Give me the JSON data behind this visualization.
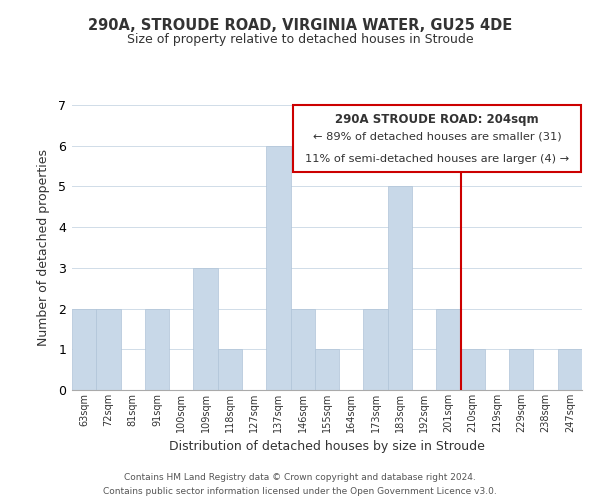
{
  "title": "290A, STROUDE ROAD, VIRGINIA WATER, GU25 4DE",
  "subtitle": "Size of property relative to detached houses in Stroude",
  "xlabel": "Distribution of detached houses by size in Stroude",
  "ylabel": "Number of detached properties",
  "categories": [
    "63sqm",
    "72sqm",
    "81sqm",
    "91sqm",
    "100sqm",
    "109sqm",
    "118sqm",
    "127sqm",
    "137sqm",
    "146sqm",
    "155sqm",
    "164sqm",
    "173sqm",
    "183sqm",
    "192sqm",
    "201sqm",
    "210sqm",
    "219sqm",
    "229sqm",
    "238sqm",
    "247sqm"
  ],
  "values": [
    2,
    2,
    0,
    2,
    0,
    3,
    1,
    0,
    6,
    2,
    1,
    0,
    2,
    5,
    0,
    2,
    1,
    0,
    1,
    0,
    1
  ],
  "bar_color": "#c8d8e8",
  "bar_edge_color": "#b0c4d8",
  "ylim": [
    0,
    7
  ],
  "yticks": [
    0,
    1,
    2,
    3,
    4,
    5,
    6,
    7
  ],
  "vline_x_index": 15,
  "vline_color": "#cc0000",
  "annotation_title": "290A STROUDE ROAD: 204sqm",
  "annotation_line1": "← 89% of detached houses are smaller (31)",
  "annotation_line2": "11% of semi-detached houses are larger (4) →",
  "annotation_box_edge": "#cc0000",
  "footer_line1": "Contains HM Land Registry data © Crown copyright and database right 2024.",
  "footer_line2": "Contains public sector information licensed under the Open Government Licence v3.0.",
  "background_color": "#ffffff",
  "grid_color": "#d0dce8"
}
